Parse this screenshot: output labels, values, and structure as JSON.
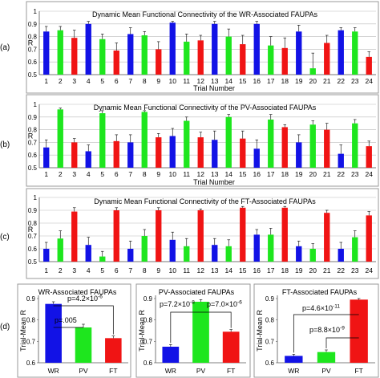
{
  "panel_labels": [
    "(a)",
    "(b)",
    "(c)",
    "(d)"
  ],
  "colors": {
    "WR": "#1212e6",
    "PV": "#1ee61e",
    "FT": "#f01414",
    "frame": "#9a9a9a",
    "grid": "#bbbbbb"
  },
  "chart_data": [
    {
      "type": "bar",
      "title": "Dynamic Mean Functional Connectivity of the WR-Associated FAUPAs",
      "xlabel": "Trial Number",
      "ylabel": "R",
      "ylim": [
        0.5,
        1.0
      ],
      "yticks": [
        "0.5",
        "0.6",
        "0.7",
        "0.8",
        "0.9",
        "1"
      ],
      "categories": [
        "1",
        "2",
        "3",
        "4",
        "5",
        "6",
        "7",
        "8",
        "9",
        "10",
        "11",
        "12",
        "13",
        "14",
        "15",
        "16",
        "17",
        "18",
        "19",
        "20",
        "21",
        "22",
        "23",
        "24"
      ],
      "bar_groups": [
        "WR",
        "PV",
        "FT",
        "WR",
        "PV",
        "FT",
        "WR",
        "PV",
        "FT",
        "WR",
        "PV",
        "FT",
        "WR",
        "PV",
        "FT",
        "WR",
        "PV",
        "FT",
        "WR",
        "PV",
        "FT",
        "WR",
        "PV",
        "FT"
      ],
      "values": [
        0.84,
        0.85,
        0.79,
        0.9,
        0.78,
        0.69,
        0.82,
        0.81,
        0.7,
        0.91,
        0.76,
        0.77,
        0.9,
        0.8,
        0.74,
        0.9,
        0.73,
        0.71,
        0.84,
        0.55,
        0.75,
        0.85,
        0.84,
        0.64
      ],
      "errors": [
        0.04,
        0.03,
        0.06,
        0.02,
        0.04,
        0.06,
        0.05,
        0.03,
        0.06,
        0.01,
        0.06,
        0.04,
        0.02,
        0.06,
        0.07,
        0.02,
        0.07,
        0.08,
        0.05,
        0.12,
        0.06,
        0.02,
        0.03,
        0.04
      ]
    },
    {
      "type": "bar",
      "title": "Dynamic Mean Functional Connectivity of the PV-Associated FAUPAs",
      "xlabel": "Trial Number",
      "ylabel": "R",
      "ylim": [
        0.5,
        1.0
      ],
      "yticks": [
        "0.5",
        "0.6",
        "0.7",
        "0.8",
        "0.9",
        "1"
      ],
      "categories": [
        "1",
        "2",
        "3",
        "4",
        "5",
        "6",
        "7",
        "8",
        "9",
        "10",
        "11",
        "12",
        "13",
        "14",
        "15",
        "16",
        "17",
        "18",
        "19",
        "20",
        "21",
        "22",
        "23",
        "24"
      ],
      "bar_groups": [
        "WR",
        "PV",
        "FT",
        "WR",
        "PV",
        "FT",
        "WR",
        "PV",
        "FT",
        "WR",
        "PV",
        "FT",
        "WR",
        "PV",
        "FT",
        "WR",
        "PV",
        "FT",
        "WR",
        "PV",
        "FT",
        "WR",
        "PV",
        "FT"
      ],
      "values": [
        0.66,
        0.96,
        0.7,
        0.63,
        0.93,
        0.71,
        0.7,
        0.94,
        0.74,
        0.75,
        0.87,
        0.74,
        0.72,
        0.9,
        0.73,
        0.65,
        0.88,
        0.82,
        0.7,
        0.84,
        0.8,
        0.61,
        0.85,
        0.67
      ],
      "errors": [
        0.06,
        0.01,
        0.03,
        0.05,
        0.02,
        0.05,
        0.06,
        0.01,
        0.03,
        0.06,
        0.03,
        0.04,
        0.07,
        0.02,
        0.06,
        0.07,
        0.04,
        0.02,
        0.06,
        0.03,
        0.05,
        0.07,
        0.03,
        0.04
      ]
    },
    {
      "type": "bar",
      "title": "Dynamic Mean Functional Connectivity of the FT-Associated FAUPAs",
      "xlabel": "Trial Number",
      "ylabel": "R",
      "ylim": [
        0.5,
        1.0
      ],
      "yticks": [
        "0.5",
        "0.6",
        "0.7",
        "0.8",
        "0.9",
        "1"
      ],
      "categories": [
        "1",
        "2",
        "3",
        "4",
        "5",
        "6",
        "7",
        "8",
        "9",
        "10",
        "11",
        "12",
        "13",
        "14",
        "15",
        "16",
        "17",
        "18",
        "19",
        "20",
        "21",
        "22",
        "23",
        "24"
      ],
      "bar_groups": [
        "WR",
        "PV",
        "FT",
        "WR",
        "PV",
        "FT",
        "WR",
        "PV",
        "FT",
        "WR",
        "PV",
        "FT",
        "WR",
        "PV",
        "FT",
        "WR",
        "PV",
        "FT",
        "WR",
        "PV",
        "FT",
        "WR",
        "PV",
        "FT"
      ],
      "values": [
        0.6,
        0.68,
        0.89,
        0.63,
        0.54,
        0.9,
        0.6,
        0.7,
        0.9,
        0.67,
        0.62,
        0.9,
        0.63,
        0.62,
        0.92,
        0.71,
        0.71,
        0.92,
        0.62,
        0.6,
        0.88,
        0.6,
        0.69,
        0.86
      ],
      "errors": [
        0.05,
        0.06,
        0.03,
        0.06,
        0.04,
        0.02,
        0.06,
        0.05,
        0.02,
        0.06,
        0.06,
        0.01,
        0.05,
        0.05,
        0.01,
        0.04,
        0.05,
        0.01,
        0.04,
        0.04,
        0.02,
        0.05,
        0.05,
        0.03
      ]
    },
    {
      "type": "bar",
      "title": "WR-Associated FAUPAs",
      "ylabel": "Trial-Mean R",
      "ylim": [
        0.6,
        0.9
      ],
      "yticks": [
        "0.6",
        "0.7",
        "0.8",
        "0.9"
      ],
      "categories": [
        "WR",
        "PV",
        "FT"
      ],
      "values": [
        0.875,
        0.765,
        0.715
      ],
      "errors": [
        0.01,
        0.015,
        0.01
      ],
      "annotations": [
        {
          "text": "p=4.2×10",
          "sup": "-6",
          "from": 0,
          "to": 2
        },
        {
          "text": "p=.005",
          "sup": "",
          "from": 0,
          "to": 1
        }
      ]
    },
    {
      "type": "bar",
      "title": "PV-Associated FAUPAs",
      "ylabel": "Trial-Mean R",
      "ylim": [
        0.6,
        0.9
      ],
      "yticks": [
        "0.6",
        "0.7",
        "0.8",
        "0.9"
      ],
      "categories": [
        "WR",
        "PV",
        "FT"
      ],
      "values": [
        0.675,
        0.885,
        0.745
      ],
      "errors": [
        0.01,
        0.01,
        0.01
      ],
      "annotations": [
        {
          "text": "p=7.2×10",
          "sup": "-8",
          "from": 0,
          "to": 1
        },
        {
          "text": "p=7.0×10",
          "sup": "-6",
          "from": 1,
          "to": 2
        }
      ]
    },
    {
      "type": "bar",
      "title": "FT-Associated FAUPAs",
      "ylabel": "Trial-Mean R",
      "ylim": [
        0.6,
        0.9
      ],
      "yticks": [
        "0.6",
        "0.7",
        "0.8",
        "0.9"
      ],
      "categories": [
        "WR",
        "PV",
        "FT"
      ],
      "values": [
        0.632,
        0.65,
        0.895
      ],
      "errors": [
        0.008,
        0.01,
        0.005
      ],
      "annotations": [
        {
          "text": "p=4.6×10",
          "sup": "-11",
          "from": 0,
          "to": 2
        },
        {
          "text": "p=8.8×10",
          "sup": "-9",
          "from": 1,
          "to": 2
        }
      ]
    }
  ]
}
